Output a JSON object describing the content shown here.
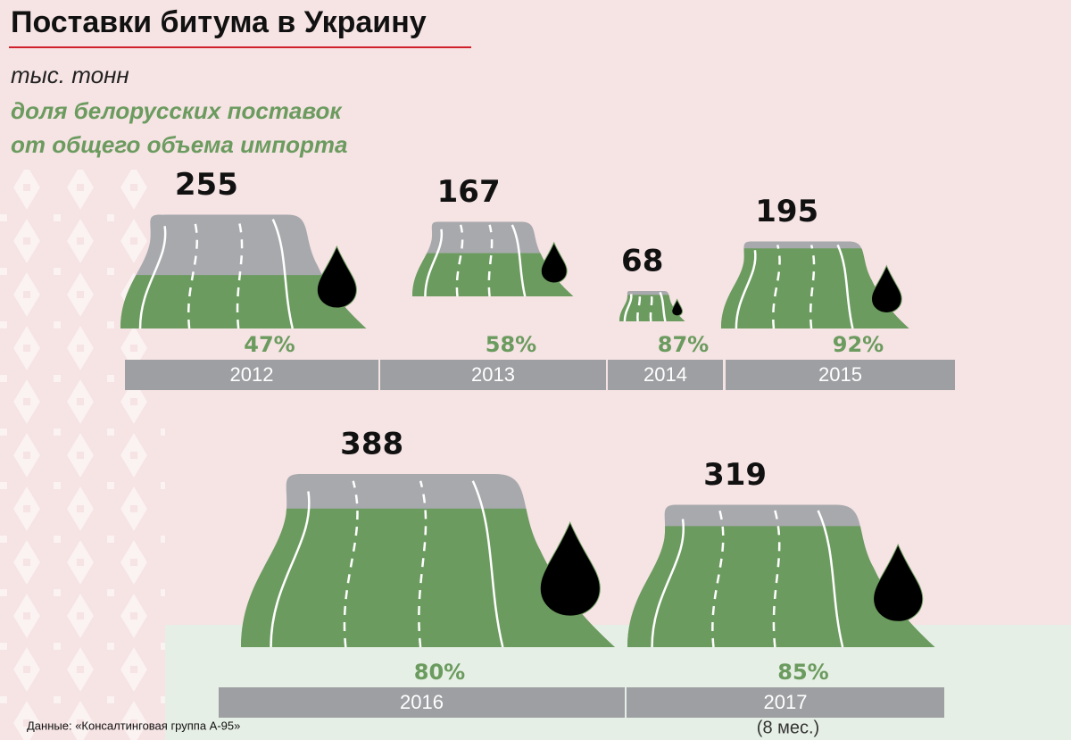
{
  "chart_data": {
    "type": "pictograph",
    "title": "Поставки битума в Украину",
    "unit": "тыс. тонн",
    "share_caption": [
      "доля белорусских поставок",
      "от общего объема импорта"
    ],
    "categories": [
      "2012",
      "2013",
      "2014",
      "2015",
      "2016",
      "2017"
    ],
    "values": [
      255,
      167,
      68,
      195,
      388,
      319
    ],
    "color": "#6b9b5e",
    "share": {
      "values": [
        47,
        58,
        87,
        92,
        80,
        85
      ],
      "value_labels": [
        "47%",
        "58%",
        "87%",
        "92%",
        "80%",
        "85%"
      ],
      "color": "#6b9b5e"
    },
    "rest_color": "#a7a9ac",
    "note": "(8 мес.)",
    "source": "Данные: «Консалтинговая группа А-95»"
  }
}
